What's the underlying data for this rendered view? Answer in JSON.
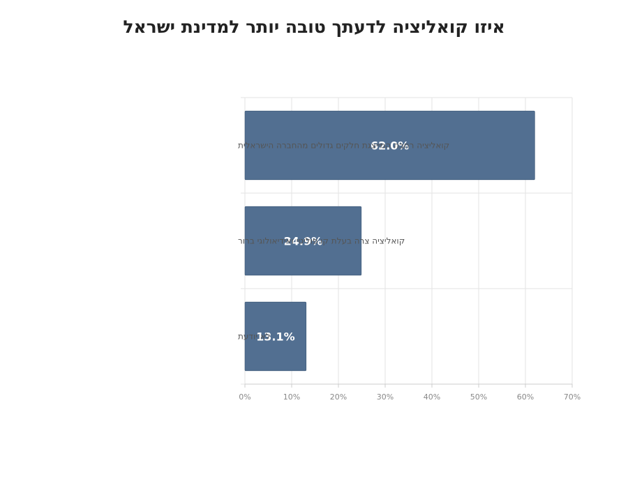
{
  "chart_data": {
    "type": "bar",
    "orientation": "horizontal",
    "title": "איזו קואליציה לדעתך טובה יותר למדינת ישראל",
    "categories": [
      "קואליציה רחבה המייצגת חלקים גדולים מהחברה הישראלית",
      "קואליציה צרה בעלת קו פוליטי ואידיאולוגי ברור",
      "לא יודעת"
    ],
    "values": [
      62.0,
      24.9,
      13.1
    ],
    "data_labels": [
      "62.0%",
      "24.9%",
      "13.1%"
    ],
    "xlim": [
      0,
      70
    ],
    "ticks": [
      0,
      10,
      20,
      30,
      40,
      50,
      60,
      70
    ],
    "tick_labels": [
      "0%",
      "10%",
      "20%",
      "30%",
      "40%",
      "50%",
      "60%",
      "70%"
    ],
    "grid": true,
    "legend": "none",
    "bar_color": "#526f91"
  }
}
